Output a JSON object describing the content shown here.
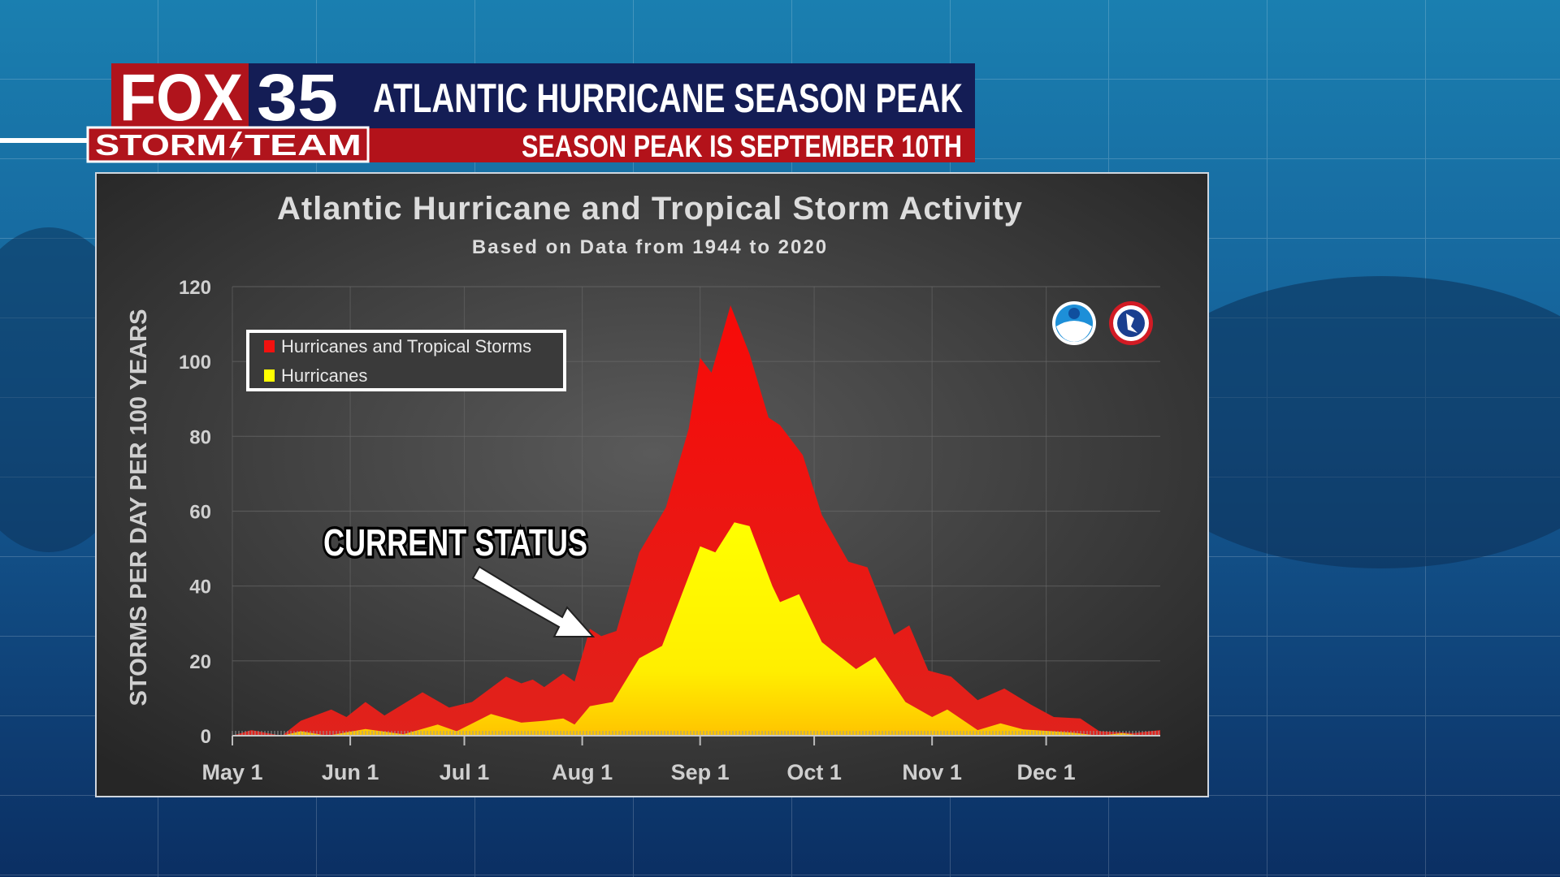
{
  "header": {
    "logo_fox": "FOX",
    "logo_number": "35",
    "logo_storm": "STORM",
    "logo_team": "TEAM",
    "title": "ATLANTIC HURRICANE SEASON PEAK",
    "subtitle": "SEASON PEAK IS SEPTEMBER 10TH"
  },
  "colors": {
    "header_navy": "#141d55",
    "header_red": "#b3121a",
    "series_all": "#f2110f",
    "series_hurricanes": "#ffff00",
    "panel_bg": "#3c3c3c"
  },
  "annotation": {
    "label": "CURRENT STATUS",
    "icon": "arrow-icon"
  },
  "logos": [
    "noaa-logo-icon",
    "nws-logo-icon"
  ],
  "chart_data": {
    "type": "area",
    "title": "Atlantic Hurricane and Tropical Storm Activity",
    "subtitle": "Based on Data from 1944 to 2020",
    "xlabel": "",
    "ylabel": "STORMS PER DAY PER 100 YEARS",
    "ylim": [
      0,
      120
    ],
    "xlim": [
      "05-01",
      "12-31"
    ],
    "grid": true,
    "legend_position": "top-left",
    "y_ticks": [
      "0",
      "20",
      "40",
      "60",
      "80",
      "100",
      "120"
    ],
    "x_ticks": [
      {
        "date": "05-01",
        "label": "May 1"
      },
      {
        "date": "06-01",
        "label": "Jun 1"
      },
      {
        "date": "07-01",
        "label": "Jul 1"
      },
      {
        "date": "08-01",
        "label": "Aug 1"
      },
      {
        "date": "09-01",
        "label": "Sep 1"
      },
      {
        "date": "10-01",
        "label": "Oct 1"
      },
      {
        "date": "11-01",
        "label": "Nov 1"
      },
      {
        "date": "12-01",
        "label": "Dec 1"
      }
    ],
    "series": [
      {
        "name": "Hurricanes and Tropical Storms",
        "color": "#f2110f",
        "points": [
          [
            "05-01",
            0
          ],
          [
            "05-06",
            1.5
          ],
          [
            "05-14",
            0
          ],
          [
            "05-19",
            4
          ],
          [
            "05-27",
            7
          ],
          [
            "05-31",
            5
          ],
          [
            "06-05",
            9
          ],
          [
            "06-10",
            5.4
          ],
          [
            "06-20",
            11.6
          ],
          [
            "06-27",
            7.5
          ],
          [
            "07-03",
            9
          ],
          [
            "07-12",
            15.8
          ],
          [
            "07-16",
            14
          ],
          [
            "07-19",
            15
          ],
          [
            "07-22",
            13
          ],
          [
            "07-27",
            16.6
          ],
          [
            "07-30",
            14.5
          ],
          [
            "08-03",
            28.6
          ],
          [
            "08-06",
            26.6
          ],
          [
            "08-10",
            28
          ],
          [
            "08-16",
            49
          ],
          [
            "08-23",
            61
          ],
          [
            "08-29",
            82
          ],
          [
            "09-01",
            101
          ],
          [
            "09-04",
            97
          ],
          [
            "09-09",
            115
          ],
          [
            "09-14",
            102
          ],
          [
            "09-19",
            85
          ],
          [
            "09-22",
            83
          ],
          [
            "09-28",
            75
          ],
          [
            "10-03",
            59
          ],
          [
            "10-10",
            46.5
          ],
          [
            "10-15",
            45
          ],
          [
            "10-22",
            27
          ],
          [
            "10-26",
            29.5
          ],
          [
            "10-31",
            17.4
          ],
          [
            "11-06",
            15.8
          ],
          [
            "11-13",
            9.5
          ],
          [
            "11-20",
            12.6
          ],
          [
            "11-27",
            8.3
          ],
          [
            "12-03",
            5
          ],
          [
            "12-10",
            4.6
          ],
          [
            "12-15",
            1.2
          ],
          [
            "12-24",
            0.7
          ],
          [
            "12-31",
            1.5
          ]
        ]
      },
      {
        "name": "Hurricanes",
        "color": "#ffff00",
        "points": [
          [
            "05-01",
            0
          ],
          [
            "05-14",
            0
          ],
          [
            "05-19",
            1.2
          ],
          [
            "05-26",
            0
          ],
          [
            "06-05",
            1.8
          ],
          [
            "06-15",
            0.4
          ],
          [
            "06-24",
            3
          ],
          [
            "06-29",
            1.2
          ],
          [
            "07-08",
            5.8
          ],
          [
            "07-16",
            3.5
          ],
          [
            "07-22",
            4
          ],
          [
            "07-27",
            4.6
          ],
          [
            "07-30",
            3
          ],
          [
            "08-03",
            7.9
          ],
          [
            "08-09",
            9
          ],
          [
            "08-16",
            20.7
          ],
          [
            "08-22",
            24
          ],
          [
            "09-01",
            50.6
          ],
          [
            "09-05",
            49
          ],
          [
            "09-10",
            57
          ],
          [
            "09-14",
            56
          ],
          [
            "09-20",
            40
          ],
          [
            "09-22",
            35.7
          ],
          [
            "09-27",
            37.8
          ],
          [
            "10-03",
            25
          ],
          [
            "10-12",
            17.8
          ],
          [
            "10-17",
            21
          ],
          [
            "10-25",
            9
          ],
          [
            "11-01",
            5
          ],
          [
            "11-05",
            7
          ],
          [
            "11-13",
            1.5
          ],
          [
            "11-19",
            3.3
          ],
          [
            "11-25",
            1.7
          ],
          [
            "12-08",
            0.8
          ],
          [
            "12-15",
            0
          ],
          [
            "12-21",
            0.7
          ],
          [
            "12-26",
            0
          ],
          [
            "12-31",
            0
          ]
        ]
      }
    ]
  }
}
